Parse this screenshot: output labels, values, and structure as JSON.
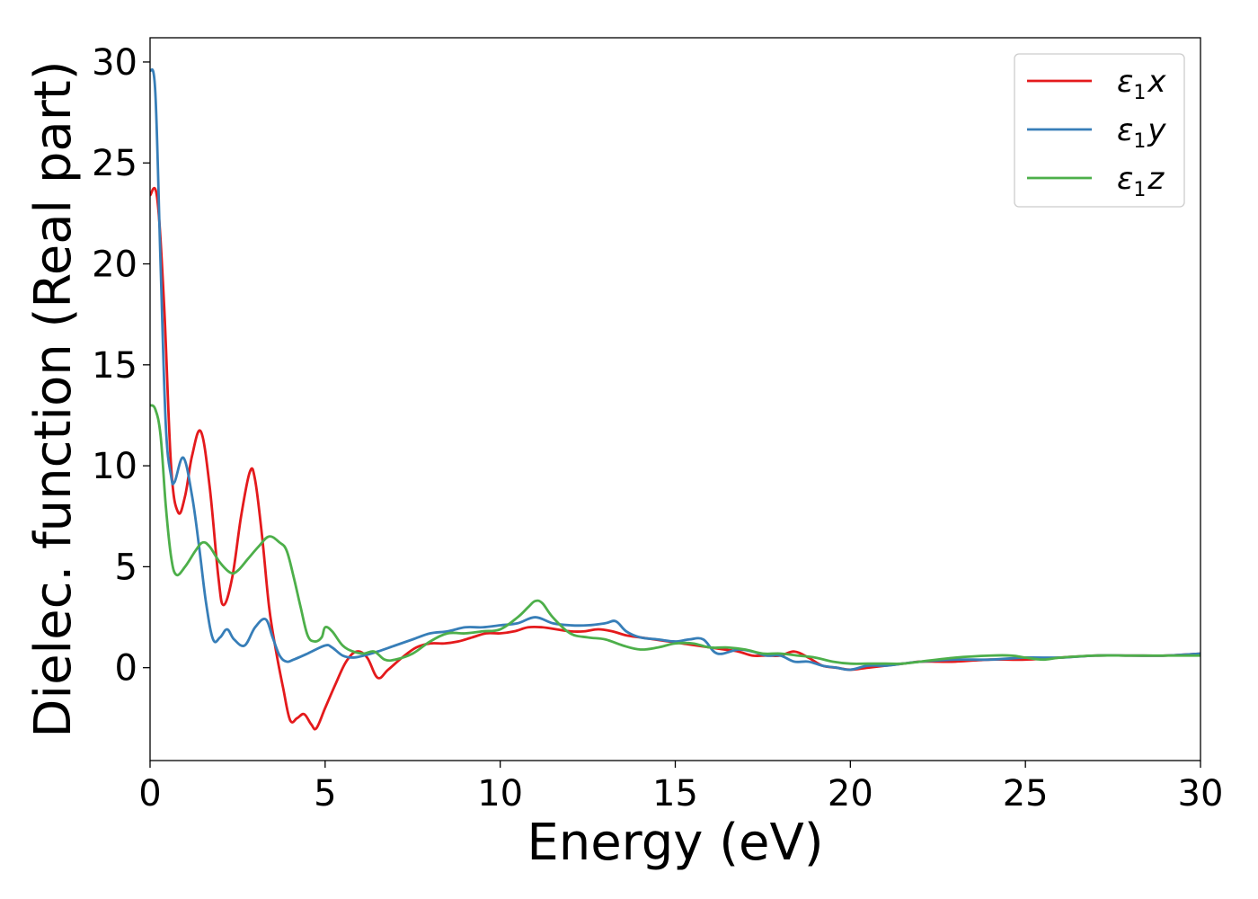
{
  "chart_data": {
    "type": "line",
    "title": "",
    "xlabel": "Energy (eV)",
    "ylabel": "Dielec. function (Real part)",
    "xlim": [
      0,
      30
    ],
    "ylim": [
      -4.6,
      31.2
    ],
    "xticks": [
      0,
      5,
      10,
      15,
      20,
      25,
      30
    ],
    "yticks": [
      0,
      5,
      10,
      15,
      20,
      25,
      30
    ],
    "grid": false,
    "legend_position": "top-right",
    "series": [
      {
        "name": "ε1x",
        "label_main": "ε",
        "label_sub": "1",
        "label_suffix": "x",
        "color": "#e41a1c",
        "x": [
          0,
          0.2,
          0.4,
          0.6,
          0.8,
          1.0,
          1.2,
          1.45,
          1.7,
          1.95,
          2.1,
          2.35,
          2.6,
          2.85,
          3.0,
          3.2,
          3.4,
          3.6,
          3.8,
          4.0,
          4.2,
          4.4,
          4.6,
          4.75,
          5.0,
          5.3,
          5.6,
          5.9,
          6.2,
          6.5,
          6.8,
          7.2,
          7.6,
          8.0,
          8.4,
          8.8,
          9.2,
          9.6,
          10.0,
          10.4,
          10.8,
          11.2,
          11.6,
          12.0,
          12.4,
          12.8,
          13.2,
          13.6,
          14.0,
          14.4,
          14.8,
          15.2,
          15.6,
          16.0,
          16.4,
          16.8,
          17.2,
          17.6,
          18.0,
          18.4,
          18.8,
          19.2,
          19.6,
          20.0,
          20.5,
          21.0,
          21.5,
          22.0,
          22.5,
          23.0,
          24.0,
          25.0,
          26.0,
          27.0,
          28.0,
          29.0,
          30.0
        ],
        "y": [
          23.4,
          23.3,
          18.0,
          10.0,
          7.7,
          8.5,
          10.5,
          11.7,
          9.0,
          4.5,
          3.1,
          4.5,
          7.5,
          9.7,
          9.3,
          6.5,
          3.0,
          0.8,
          -1.0,
          -2.6,
          -2.5,
          -2.3,
          -2.8,
          -3.0,
          -2.0,
          -0.8,
          0.3,
          0.8,
          0.5,
          -0.5,
          -0.1,
          0.5,
          1.0,
          1.2,
          1.2,
          1.3,
          1.5,
          1.7,
          1.7,
          1.8,
          2.0,
          2.0,
          1.9,
          1.8,
          1.8,
          1.9,
          1.8,
          1.6,
          1.5,
          1.4,
          1.3,
          1.2,
          1.1,
          1.0,
          0.9,
          0.8,
          0.6,
          0.6,
          0.6,
          0.8,
          0.5,
          0.1,
          0.0,
          -0.1,
          0.0,
          0.1,
          0.2,
          0.3,
          0.3,
          0.3,
          0.4,
          0.4,
          0.5,
          0.6,
          0.6,
          0.6,
          0.7
        ]
      },
      {
        "name": "ε1y",
        "label_main": "ε",
        "label_sub": "1",
        "label_suffix": "y",
        "color": "#377eb8",
        "x": [
          0,
          0.15,
          0.3,
          0.45,
          0.6,
          0.7,
          0.95,
          1.2,
          1.4,
          1.6,
          1.8,
          2.0,
          2.2,
          2.4,
          2.7,
          3.0,
          3.3,
          3.5,
          3.7,
          3.9,
          4.1,
          4.5,
          5.0,
          5.2,
          5.5,
          5.8,
          6.1,
          6.5,
          7.0,
          7.5,
          8.0,
          8.5,
          9.0,
          9.5,
          10.0,
          10.5,
          11.0,
          11.5,
          12.0,
          12.5,
          13.0,
          13.3,
          13.6,
          14.0,
          14.5,
          15.0,
          15.4,
          15.8,
          16.2,
          16.8,
          17.2,
          17.6,
          18.0,
          18.4,
          18.8,
          19.2,
          19.6,
          20.0,
          20.5,
          21.0,
          21.5,
          22.0,
          23.0,
          24.0,
          25.0,
          26.0,
          27.0,
          28.0,
          29.0,
          30.0
        ],
        "y": [
          29.6,
          28.5,
          20.0,
          12.0,
          9.5,
          9.2,
          10.4,
          8.5,
          6.0,
          3.2,
          1.4,
          1.5,
          1.9,
          1.4,
          1.1,
          2.0,
          2.4,
          1.5,
          0.6,
          0.3,
          0.4,
          0.7,
          1.1,
          1.0,
          0.6,
          0.5,
          0.6,
          0.8,
          1.1,
          1.4,
          1.7,
          1.8,
          2.0,
          2.0,
          2.1,
          2.2,
          2.5,
          2.2,
          2.1,
          2.1,
          2.2,
          2.3,
          1.8,
          1.5,
          1.4,
          1.3,
          1.4,
          1.4,
          0.7,
          0.9,
          0.8,
          0.6,
          0.6,
          0.3,
          0.3,
          0.1,
          0.0,
          -0.1,
          0.1,
          0.1,
          0.2,
          0.3,
          0.4,
          0.4,
          0.5,
          0.5,
          0.6,
          0.6,
          0.6,
          0.7
        ]
      },
      {
        "name": "ε1z",
        "label_main": "ε",
        "label_sub": "1",
        "label_suffix": "z",
        "color": "#4daf4a",
        "x": [
          0,
          0.15,
          0.3,
          0.45,
          0.6,
          0.75,
          1.0,
          1.3,
          1.5,
          1.7,
          2.0,
          2.3,
          2.5,
          2.8,
          3.1,
          3.4,
          3.7,
          3.9,
          4.1,
          4.3,
          4.5,
          4.7,
          4.9,
          5.0,
          5.2,
          5.5,
          5.8,
          6.1,
          6.4,
          6.7,
          7.0,
          7.5,
          8.0,
          8.5,
          9.0,
          9.5,
          10.0,
          10.5,
          10.8,
          11.0,
          11.2,
          11.5,
          12.0,
          12.5,
          13.0,
          13.5,
          14.0,
          14.5,
          15.0,
          15.5,
          16.0,
          16.5,
          17.0,
          17.5,
          18.0,
          18.5,
          19.0,
          19.5,
          20.0,
          20.5,
          21.0,
          21.5,
          22.0,
          23.0,
          24.0,
          24.6,
          25.0,
          25.5,
          26.0,
          27.0,
          28.0,
          29.0,
          30.0
        ],
        "y": [
          13.0,
          12.8,
          11.5,
          8.0,
          5.5,
          4.6,
          5.0,
          5.8,
          6.2,
          6.0,
          5.2,
          4.7,
          4.8,
          5.4,
          6.0,
          6.5,
          6.2,
          5.8,
          4.5,
          3.0,
          1.6,
          1.3,
          1.5,
          2.0,
          1.8,
          1.1,
          0.8,
          0.7,
          0.8,
          0.4,
          0.4,
          0.7,
          1.3,
          1.7,
          1.7,
          1.8,
          1.9,
          2.5,
          3.0,
          3.3,
          3.2,
          2.5,
          1.7,
          1.5,
          1.4,
          1.1,
          0.9,
          1.0,
          1.2,
          1.2,
          1.0,
          1.0,
          0.9,
          0.7,
          0.7,
          0.6,
          0.5,
          0.3,
          0.2,
          0.2,
          0.2,
          0.2,
          0.3,
          0.5,
          0.6,
          0.6,
          0.5,
          0.4,
          0.5,
          0.6,
          0.6,
          0.6,
          0.6
        ]
      }
    ]
  }
}
